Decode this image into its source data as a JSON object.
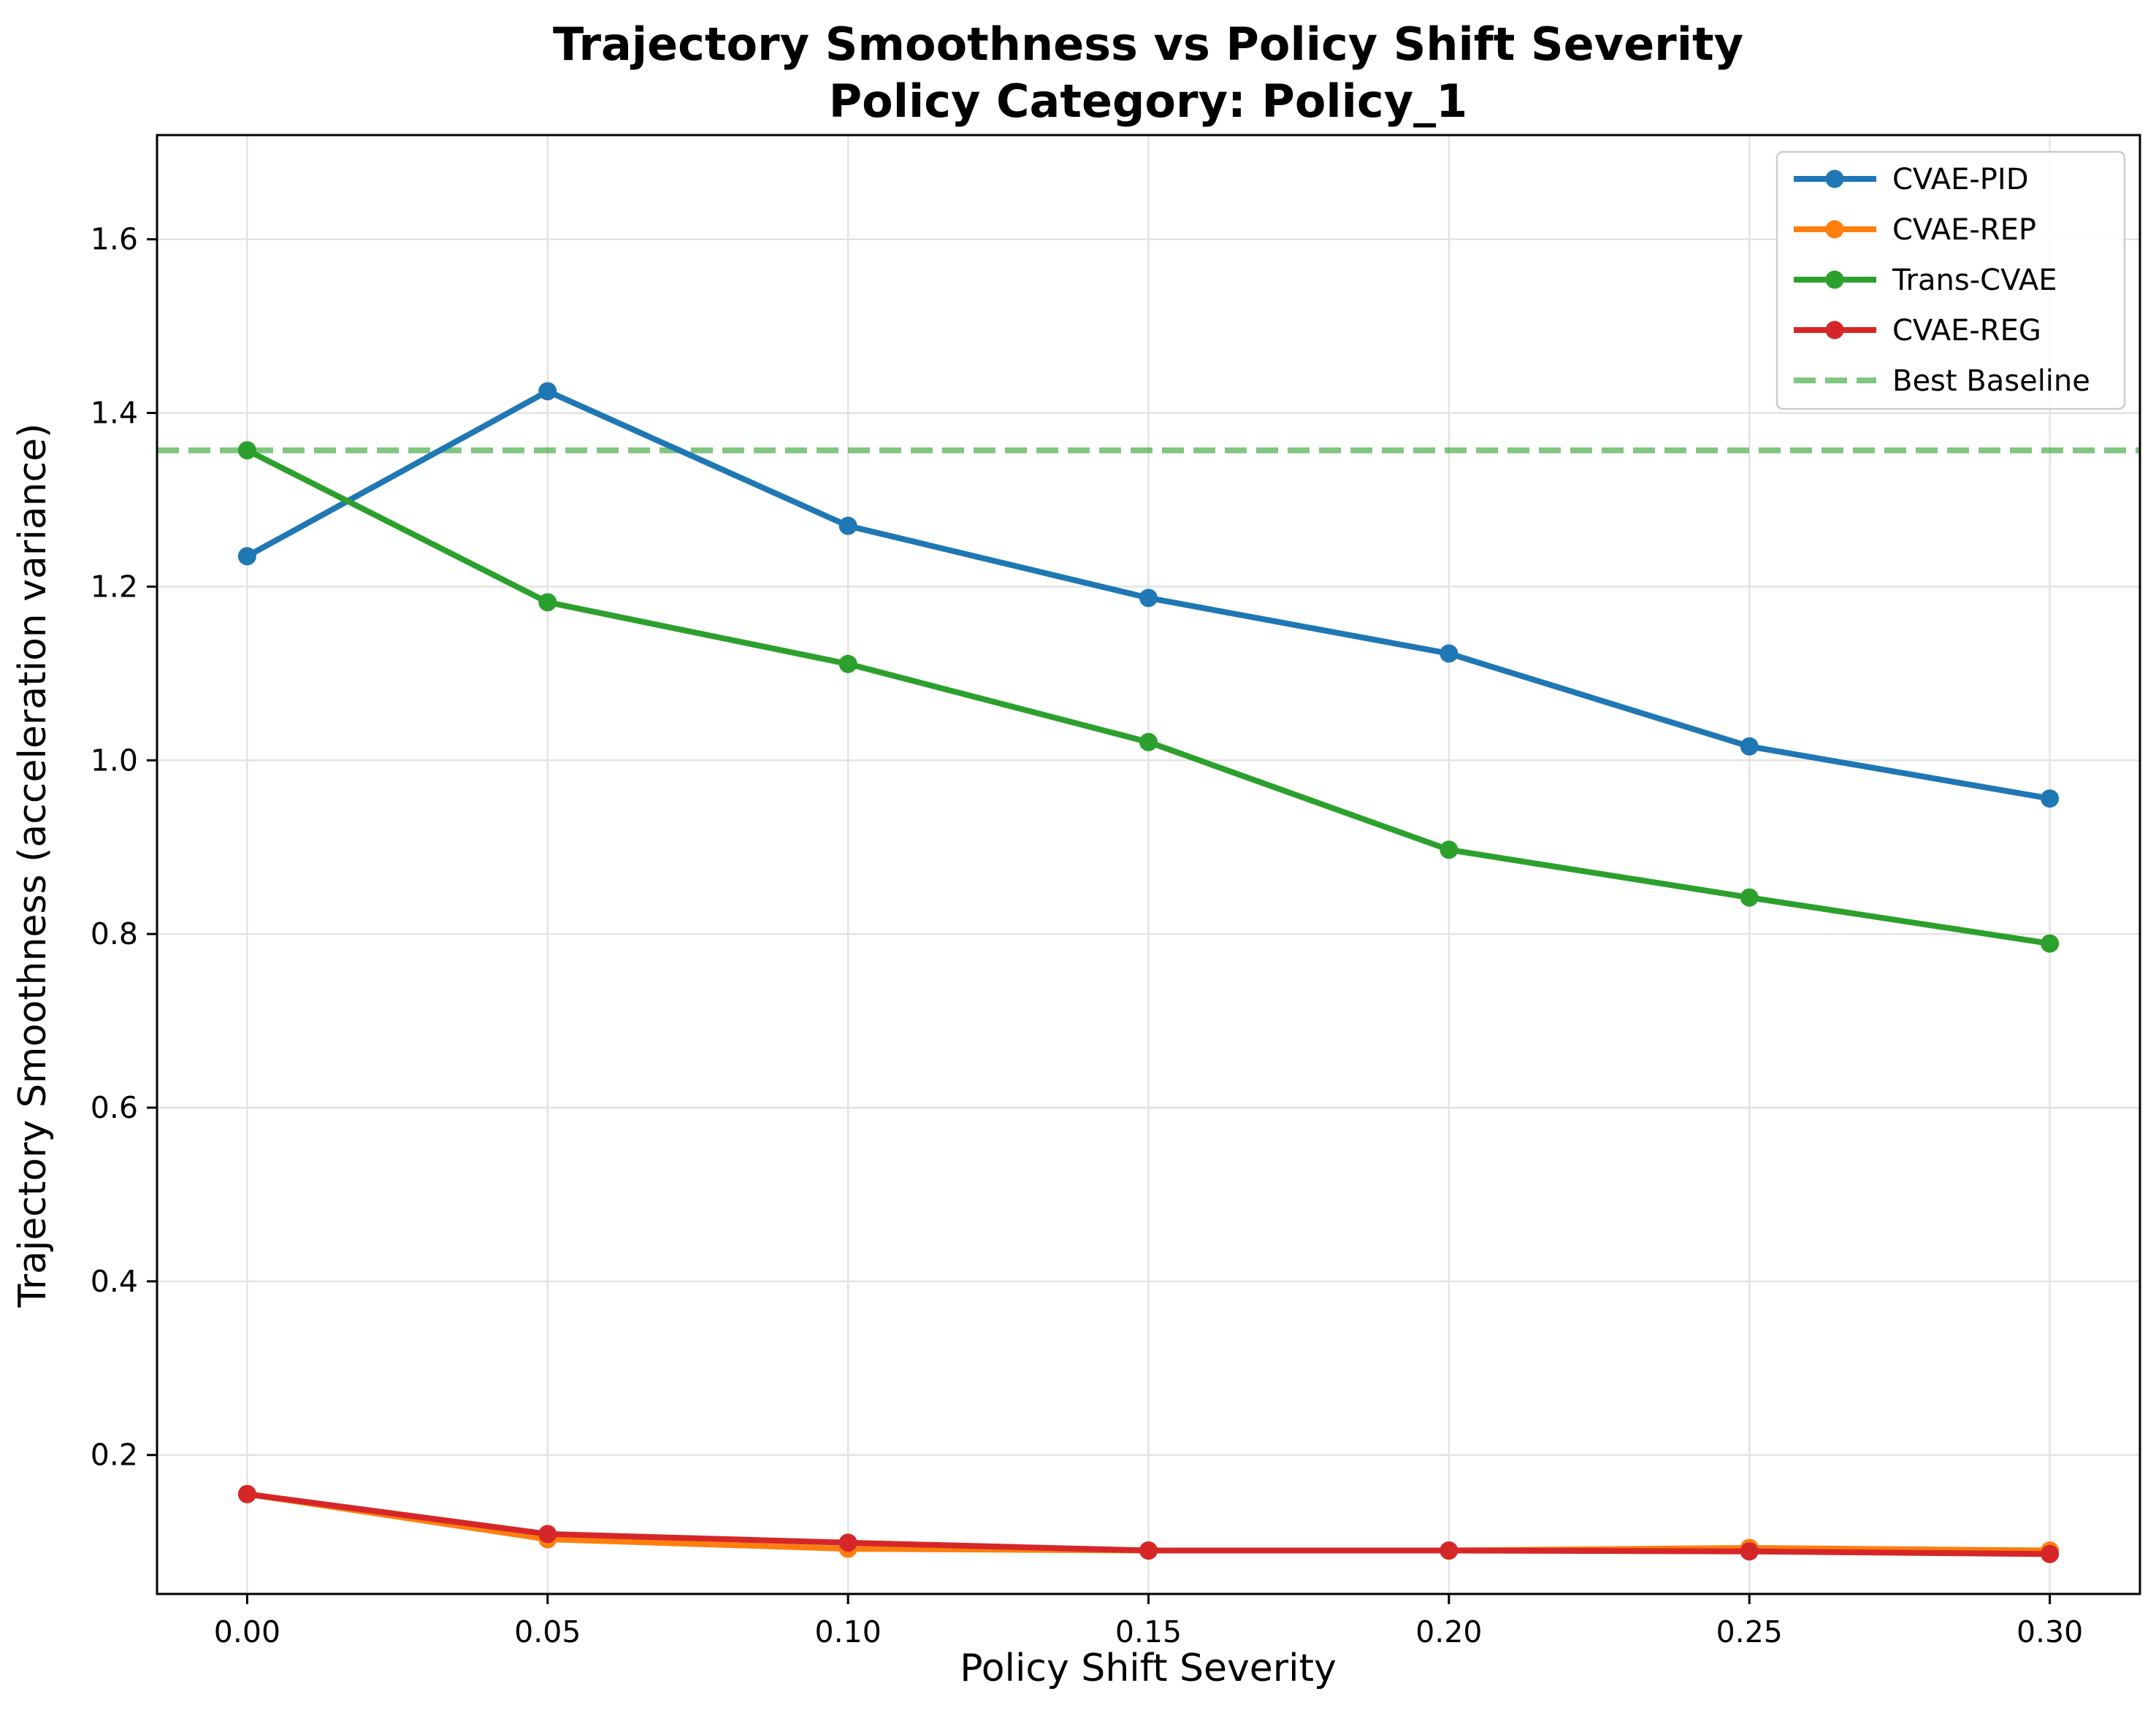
{
  "chart_data": {
    "type": "line",
    "title": "Trajectory Smoothness vs Policy Shift Severity",
    "subtitle": "Policy Category: Policy_1",
    "xlabel": "Policy Shift Severity",
    "ylabel": "Trajectory Smoothness (acceleration variance)",
    "x": [
      0.0,
      0.05,
      0.1,
      0.15,
      0.2,
      0.25,
      0.3
    ],
    "x_tick_labels": [
      "0.00",
      "0.05",
      "0.10",
      "0.15",
      "0.20",
      "0.25",
      "0.30"
    ],
    "y_ticks": [
      0.2,
      0.4,
      0.6,
      0.8,
      1.0,
      1.2,
      1.4,
      1.6
    ],
    "y_tick_labels": [
      "0.2",
      "0.4",
      "0.6",
      "0.8",
      "1.0",
      "1.2",
      "1.4",
      "1.6"
    ],
    "xlim": [
      -0.015,
      0.315
    ],
    "ylim": [
      0.04,
      1.72
    ],
    "grid": true,
    "legend_position": "top-right",
    "series": [
      {
        "name": "CVAE-PID",
        "color": "#1f77b4",
        "values": [
          1.235,
          1.425,
          1.27,
          1.187,
          1.123,
          1.016,
          0.956
        ]
      },
      {
        "name": "CVAE-REP",
        "color": "#ff7f0e",
        "values": [
          0.155,
          0.103,
          0.092,
          0.09,
          0.09,
          0.093,
          0.09
        ]
      },
      {
        "name": "Trans-CVAE",
        "color": "#2ca02c",
        "values": [
          1.357,
          1.182,
          1.111,
          1.021,
          0.897,
          0.842,
          0.789
        ]
      },
      {
        "name": "CVAE-REG",
        "color": "#d62728",
        "values": [
          0.155,
          0.109,
          0.099,
          0.09,
          0.09,
          0.089,
          0.086
        ]
      }
    ],
    "reference_lines": [
      {
        "name": "Best Baseline",
        "y": 1.357,
        "color": "#2ca02c",
        "style": "dashed",
        "opacity": 0.6
      }
    ]
  }
}
